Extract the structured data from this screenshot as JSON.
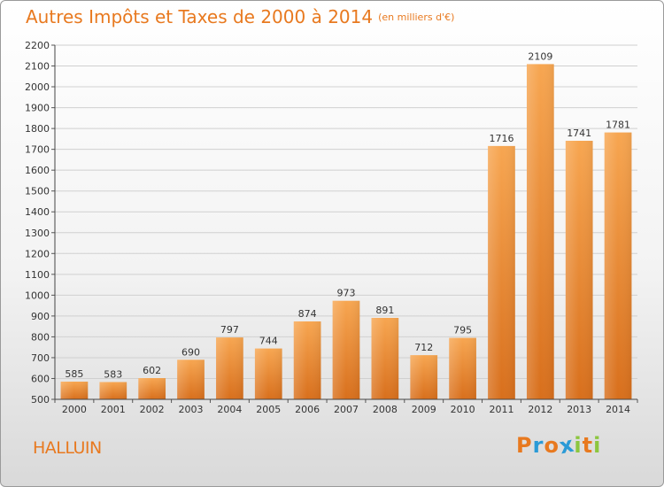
{
  "title": "Autres Impôts et Taxes de 2000 à 2014",
  "unit_label": "(en milliers d'€)",
  "city": "HALLUIN",
  "logo": {
    "text": "Proxiti",
    "letters": [
      {
        "ch": "P",
        "color": "#e8791f"
      },
      {
        "ch": "r",
        "color": "#2a9ad6"
      },
      {
        "ch": "o",
        "color": "#e8791f"
      },
      {
        "ch": "x",
        "color": "#2a9ad6"
      },
      {
        "ch": "i",
        "color": "#8cc63f"
      },
      {
        "ch": "t",
        "color": "#e8791f"
      },
      {
        "ch": "i",
        "color": "#8cc63f"
      }
    ]
  },
  "colors": {
    "bar_top": "#f7a651",
    "bar_bottom": "#d86f1c",
    "title": "#e8791f",
    "grid": "#d0d0d0"
  },
  "chart_data": {
    "type": "bar",
    "title": "Autres Impôts et Taxes de 2000 à 2014",
    "ylabel": "",
    "xlabel": "",
    "categories": [
      "2000",
      "2001",
      "2002",
      "2003",
      "2004",
      "2005",
      "2006",
      "2007",
      "2008",
      "2009",
      "2010",
      "2011",
      "2012",
      "2013",
      "2014"
    ],
    "values": [
      585,
      583,
      602,
      690,
      797,
      744,
      874,
      973,
      891,
      712,
      795,
      1716,
      2109,
      1741,
      1781
    ],
    "ylim": [
      500,
      2200
    ],
    "ytick_step": 100,
    "grid": true,
    "data_labels": true
  }
}
